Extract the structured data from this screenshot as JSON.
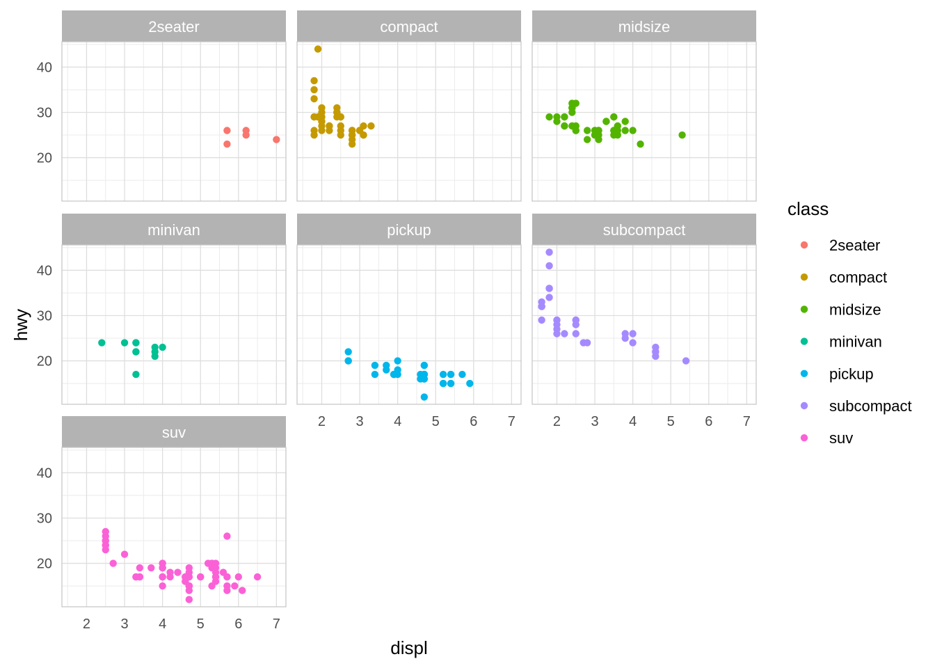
{
  "chart_data": {
    "type": "scatter",
    "facet_by": "class",
    "xlabel": "displ",
    "ylabel": "hwy",
    "xlim": [
      1.35,
      7.25
    ],
    "ylim": [
      10.4,
      45.6
    ],
    "x_ticks": [
      2,
      3,
      4,
      5,
      6,
      7
    ],
    "y_ticks": [
      20,
      30,
      40
    ],
    "grid": true,
    "legend": {
      "title": "class",
      "position": "right"
    },
    "panels": [
      {
        "name": "2seater",
        "color": "#F8766D",
        "points": [
          [
            5.7,
            26
          ],
          [
            5.7,
            23
          ],
          [
            6.2,
            26
          ],
          [
            6.2,
            25
          ],
          [
            7.0,
            24
          ]
        ]
      },
      {
        "name": "compact",
        "color": "#C49A00",
        "points": [
          [
            1.8,
            29
          ],
          [
            1.8,
            29
          ],
          [
            2.0,
            31
          ],
          [
            2.0,
            30
          ],
          [
            2.8,
            26
          ],
          [
            2.8,
            26
          ],
          [
            3.1,
            27
          ],
          [
            1.8,
            26
          ],
          [
            1.8,
            25
          ],
          [
            2.0,
            28
          ],
          [
            2.0,
            27
          ],
          [
            2.8,
            25
          ],
          [
            2.8,
            25
          ],
          [
            3.1,
            25
          ],
          [
            3.1,
            25
          ],
          [
            2.2,
            26
          ],
          [
            2.2,
            27
          ],
          [
            2.4,
            30
          ],
          [
            2.4,
            31
          ],
          [
            3.0,
            26
          ],
          [
            3.0,
            26
          ],
          [
            1.9,
            44
          ],
          [
            1.9,
            29
          ],
          [
            2.0,
            26
          ],
          [
            2.0,
            29
          ],
          [
            2.5,
            29
          ],
          [
            2.5,
            29
          ],
          [
            2.8,
            23
          ],
          [
            2.8,
            24
          ],
          [
            1.8,
            37
          ],
          [
            1.8,
            35
          ],
          [
            1.8,
            33
          ],
          [
            2.0,
            29
          ],
          [
            2.5,
            25
          ],
          [
            2.0,
            28
          ],
          [
            2.5,
            27
          ],
          [
            3.3,
            27
          ],
          [
            2.8,
            26
          ],
          [
            2.4,
            29
          ],
          [
            2.4,
            30
          ],
          [
            2.2,
            27
          ],
          [
            2.5,
            26
          ]
        ]
      },
      {
        "name": "midsize",
        "color": "#53B400",
        "points": [
          [
            2.8,
            24
          ],
          [
            3.1,
            25
          ],
          [
            4.2,
            23
          ],
          [
            2.4,
            30
          ],
          [
            2.4,
            31
          ],
          [
            3.1,
            26
          ],
          [
            3.5,
            29
          ],
          [
            3.6,
            26
          ],
          [
            2.4,
            27
          ],
          [
            2.5,
            27
          ],
          [
            3.3,
            28
          ],
          [
            3.5,
            25
          ],
          [
            2.0,
            29
          ],
          [
            2.0,
            28
          ],
          [
            2.2,
            29
          ],
          [
            2.2,
            27
          ],
          [
            2.4,
            32
          ],
          [
            2.5,
            32
          ],
          [
            3.0,
            26
          ],
          [
            3.3,
            28
          ],
          [
            3.5,
            26
          ],
          [
            3.5,
            29
          ],
          [
            3.8,
            28
          ],
          [
            3.8,
            26
          ],
          [
            4.0,
            26
          ],
          [
            3.0,
            26
          ],
          [
            5.3,
            25
          ],
          [
            2.2,
            29
          ],
          [
            2.4,
            31
          ],
          [
            2.5,
            26
          ],
          [
            3.5,
            26
          ],
          [
            3.0,
            25
          ],
          [
            1.8,
            29
          ],
          [
            2.5,
            26
          ],
          [
            3.0,
            25
          ],
          [
            3.1,
            26
          ],
          [
            3.1,
            24
          ],
          [
            2.2,
            27
          ],
          [
            2.8,
            26
          ],
          [
            3.6,
            27
          ],
          [
            3.6,
            25
          ]
        ]
      },
      {
        "name": "minivan",
        "color": "#00C094",
        "points": [
          [
            2.4,
            24
          ],
          [
            3.0,
            24
          ],
          [
            3.3,
            22
          ],
          [
            3.3,
            22
          ],
          [
            3.3,
            24
          ],
          [
            3.3,
            24
          ],
          [
            3.3,
            17
          ],
          [
            3.8,
            22
          ],
          [
            3.8,
            21
          ],
          [
            3.8,
            23
          ],
          [
            4.0,
            23
          ]
        ]
      },
      {
        "name": "pickup",
        "color": "#00B6EB",
        "points": [
          [
            3.7,
            19
          ],
          [
            3.7,
            18
          ],
          [
            3.9,
            17
          ],
          [
            3.9,
            17
          ],
          [
            4.7,
            19
          ],
          [
            4.7,
            19
          ],
          [
            4.7,
            12
          ],
          [
            5.2,
            17
          ],
          [
            5.2,
            15
          ],
          [
            3.9,
            17
          ],
          [
            4.7,
            17
          ],
          [
            4.7,
            17
          ],
          [
            4.7,
            16
          ],
          [
            5.2,
            15
          ],
          [
            5.7,
            17
          ],
          [
            5.9,
            15
          ],
          [
            4.6,
            17
          ],
          [
            5.4,
            17
          ],
          [
            5.4,
            15
          ],
          [
            4.6,
            16
          ],
          [
            4.7,
            17
          ],
          [
            5.4,
            17
          ],
          [
            2.7,
            20
          ],
          [
            2.7,
            22
          ],
          [
            3.4,
            17
          ],
          [
            3.4,
            19
          ],
          [
            4.0,
            18
          ],
          [
            4.0,
            20
          ],
          [
            4.0,
            17
          ],
          [
            4.7,
            16
          ],
          [
            4.7,
            17
          ],
          [
            5.4,
            15
          ],
          [
            2.7,
            20
          ]
        ]
      },
      {
        "name": "subcompact",
        "color": "#A58AFF",
        "points": [
          [
            3.8,
            26
          ],
          [
            3.8,
            25
          ],
          [
            4.0,
            26
          ],
          [
            4.0,
            24
          ],
          [
            4.6,
            21
          ],
          [
            4.6,
            22
          ],
          [
            4.6,
            23
          ],
          [
            4.6,
            22
          ],
          [
            5.4,
            20
          ],
          [
            1.6,
            33
          ],
          [
            1.6,
            32
          ],
          [
            1.6,
            32
          ],
          [
            1.6,
            29
          ],
          [
            1.6,
            32
          ],
          [
            1.8,
            34
          ],
          [
            1.8,
            36
          ],
          [
            1.8,
            36
          ],
          [
            2.0,
            29
          ],
          [
            2.0,
            26
          ],
          [
            2.0,
            27
          ],
          [
            2.0,
            29
          ],
          [
            2.5,
            26
          ],
          [
            2.5,
            29
          ],
          [
            2.5,
            29
          ],
          [
            2.7,
            24
          ],
          [
            2.2,
            26
          ],
          [
            2.0,
            28
          ],
          [
            1.8,
            44
          ],
          [
            1.8,
            41
          ],
          [
            2.5,
            28
          ],
          [
            2.8,
            24
          ]
        ]
      },
      {
        "name": "suv",
        "color": "#FB61D7",
        "points": [
          [
            5.3,
            20
          ],
          [
            5.3,
            15
          ],
          [
            5.3,
            20
          ],
          [
            5.7,
            17
          ],
          [
            6.0,
            17
          ],
          [
            5.7,
            26
          ],
          [
            6.5,
            17
          ],
          [
            4.7,
            12
          ],
          [
            5.3,
            19
          ],
          [
            5.7,
            15
          ],
          [
            6.1,
            14
          ],
          [
            4.7,
            19
          ],
          [
            4.7,
            18
          ],
          [
            4.7,
            17
          ],
          [
            5.7,
            17
          ],
          [
            5.9,
            15
          ],
          [
            4.7,
            15
          ],
          [
            4.7,
            15
          ],
          [
            5.4,
            17
          ],
          [
            5.4,
            18
          ],
          [
            4.0,
            17
          ],
          [
            4.0,
            17
          ],
          [
            4.6,
            17
          ],
          [
            5.0,
            17
          ],
          [
            4.2,
            18
          ],
          [
            4.2,
            17
          ],
          [
            4.6,
            16
          ],
          [
            5.4,
            16
          ],
          [
            5.4,
            17
          ],
          [
            4.0,
            20
          ],
          [
            4.0,
            15
          ],
          [
            4.0,
            19
          ],
          [
            4.6,
            17
          ],
          [
            5.0,
            17
          ],
          [
            3.3,
            17
          ],
          [
            3.3,
            17
          ],
          [
            4.0,
            20
          ],
          [
            4.0,
            19
          ],
          [
            4.7,
            15
          ],
          [
            4.7,
            15
          ],
          [
            5.7,
            14
          ],
          [
            2.5,
            25
          ],
          [
            2.5,
            24
          ],
          [
            2.5,
            23
          ],
          [
            2.5,
            26
          ],
          [
            2.5,
            27
          ],
          [
            2.5,
            25
          ],
          [
            2.5,
            24
          ],
          [
            2.7,
            20
          ],
          [
            3.4,
            19
          ],
          [
            3.4,
            17
          ],
          [
            4.0,
            19
          ],
          [
            4.7,
            17
          ],
          [
            4.7,
            14
          ],
          [
            5.2,
            20
          ],
          [
            5.4,
            19
          ],
          [
            3.7,
            19
          ],
          [
            3.0,
            22
          ],
          [
            4.4,
            18
          ],
          [
            5.4,
            20
          ],
          [
            3.4,
            17
          ],
          [
            4.0,
            17
          ],
          [
            5.6,
            18
          ]
        ]
      }
    ]
  }
}
